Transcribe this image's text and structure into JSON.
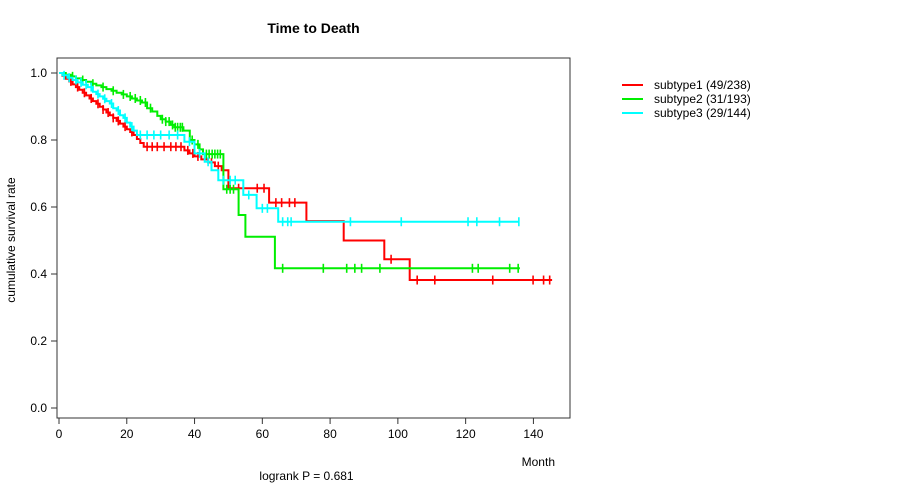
{
  "chart_data": {
    "type": "line",
    "subtype": "kaplan-meier-survival-step",
    "title": "Time to Death",
    "xlabel": "Month",
    "ylabel": "cumulative survival rate",
    "annotation": "logrank P = 0.681",
    "x_ticks": [
      "0",
      "20",
      "40",
      "60",
      "80",
      "100",
      "120",
      "140"
    ],
    "y_ticks": [
      "0.0",
      "0.2",
      "0.4",
      "0.6",
      "0.8",
      "1.0"
    ],
    "xlim": [
      0,
      150
    ],
    "ylim": [
      0,
      1.045
    ],
    "grid": false,
    "legend_position": "right-outside",
    "series": [
      {
        "name": "subtype1",
        "label": "subtype1 (49/238)",
        "color": "#ff0000",
        "events": 49,
        "n": 238,
        "steps": [
          [
            0,
            1.0
          ],
          [
            1,
            0.992
          ],
          [
            2,
            0.983
          ],
          [
            3,
            0.975
          ],
          [
            4,
            0.966
          ],
          [
            5,
            0.958
          ],
          [
            6,
            0.95
          ],
          [
            7,
            0.941
          ],
          [
            8,
            0.933
          ],
          [
            9,
            0.924
          ],
          [
            10,
            0.916
          ],
          [
            11,
            0.908
          ],
          [
            12,
            0.899
          ],
          [
            13,
            0.891
          ],
          [
            14,
            0.882
          ],
          [
            15,
            0.874
          ],
          [
            16,
            0.866
          ],
          [
            17,
            0.857
          ],
          [
            18,
            0.849
          ],
          [
            19,
            0.84
          ],
          [
            20,
            0.832
          ],
          [
            21,
            0.824
          ],
          [
            22,
            0.815
          ],
          [
            23,
            0.803
          ],
          [
            24,
            0.791
          ],
          [
            25,
            0.78
          ],
          [
            37,
            0.769
          ],
          [
            38.5,
            0.76
          ],
          [
            40,
            0.751
          ],
          [
            42,
            0.742
          ],
          [
            44,
            0.733
          ],
          [
            46,
            0.722
          ],
          [
            48,
            0.71
          ],
          [
            50,
            0.656
          ],
          [
            62,
            0.613
          ],
          [
            73,
            0.558
          ],
          [
            84,
            0.5
          ],
          [
            96,
            0.444
          ],
          [
            103.5,
            0.382
          ]
        ],
        "end_time": 145.5,
        "censors": [
          3.5,
          5.5,
          7.5,
          9.5,
          11.5,
          13,
          14.5,
          16,
          17.5,
          19.5,
          21.5,
          26,
          27.5,
          29,
          31,
          33,
          34.5,
          36,
          38,
          39.5,
          41,
          45,
          47,
          53,
          58.5,
          60.5,
          64,
          65.7,
          68,
          69.6,
          98,
          105.7,
          110.9,
          128,
          139.9,
          143,
          144.8
        ]
      },
      {
        "name": "subtype2",
        "label": "subtype2 (31/193)",
        "color": "#00ee00",
        "events": 31,
        "n": 193,
        "steps": [
          [
            0,
            1.0
          ],
          [
            2,
            0.995
          ],
          [
            3.5,
            0.99
          ],
          [
            5,
            0.984
          ],
          [
            6.5,
            0.979
          ],
          [
            8,
            0.974
          ],
          [
            9.5,
            0.968
          ],
          [
            11,
            0.963
          ],
          [
            12.5,
            0.958
          ],
          [
            14,
            0.952
          ],
          [
            15.5,
            0.947
          ],
          [
            17,
            0.941
          ],
          [
            18.5,
            0.936
          ],
          [
            20,
            0.93
          ],
          [
            21.5,
            0.924
          ],
          [
            23,
            0.918
          ],
          [
            24.5,
            0.912
          ],
          [
            26,
            0.895
          ],
          [
            27.5,
            0.885
          ],
          [
            29,
            0.872
          ],
          [
            30,
            0.862
          ],
          [
            31.5,
            0.855
          ],
          [
            33,
            0.845
          ],
          [
            34,
            0.838
          ],
          [
            36.7,
            0.828
          ],
          [
            38.6,
            0.8
          ],
          [
            40,
            0.787
          ],
          [
            41.5,
            0.772
          ],
          [
            42.5,
            0.758
          ],
          [
            48.5,
            0.653
          ],
          [
            53,
            0.576
          ],
          [
            55,
            0.511
          ],
          [
            63.7,
            0.417
          ]
        ],
        "end_time": 136,
        "censors": [
          4,
          7,
          10,
          13,
          16,
          19,
          21,
          22.5,
          24,
          25.5,
          27,
          30.5,
          31.5,
          32.5,
          33.5,
          34.3,
          35,
          35.8,
          36.4,
          39.3,
          41,
          43.5,
          44.3,
          45.2,
          46,
          46.8,
          47.6,
          49.5,
          50.5,
          51.5,
          66,
          78,
          84.9,
          87.3,
          89.3,
          94.7,
          122,
          123.7,
          133,
          135.5
        ]
      },
      {
        "name": "subtype3",
        "label": "subtype3 (29/144)",
        "color": "#00ffff",
        "events": 29,
        "n": 144,
        "steps": [
          [
            0,
            1.0
          ],
          [
            1,
            0.993
          ],
          [
            2.5,
            0.986
          ],
          [
            4,
            0.979
          ],
          [
            5.5,
            0.972
          ],
          [
            7,
            0.965
          ],
          [
            8.5,
            0.958
          ],
          [
            10,
            0.944
          ],
          [
            11,
            0.937
          ],
          [
            12,
            0.93
          ],
          [
            13,
            0.923
          ],
          [
            14,
            0.916
          ],
          [
            15,
            0.909
          ],
          [
            16,
            0.895
          ],
          [
            17,
            0.888
          ],
          [
            18,
            0.874
          ],
          [
            19,
            0.866
          ],
          [
            20,
            0.852
          ],
          [
            21,
            0.84
          ],
          [
            22,
            0.828
          ],
          [
            23,
            0.815
          ],
          [
            37,
            0.795
          ],
          [
            40,
            0.76
          ],
          [
            43,
            0.735
          ],
          [
            45,
            0.71
          ],
          [
            47,
            0.68
          ],
          [
            54.4,
            0.636
          ],
          [
            58.3,
            0.596
          ],
          [
            64.7,
            0.556
          ]
        ],
        "end_time": 135.7,
        "censors": [
          1.5,
          3,
          5,
          6.5,
          8,
          9.5,
          11.5,
          13.5,
          15.5,
          17.5,
          19.5,
          21.5,
          24,
          26,
          28,
          30,
          32.5,
          35,
          38.5,
          41.5,
          44,
          48.5,
          50.5,
          52,
          56,
          60,
          61.5,
          66,
          67.5,
          68.5,
          86,
          101,
          120.7,
          123.3,
          130,
          135.7
        ]
      }
    ]
  }
}
